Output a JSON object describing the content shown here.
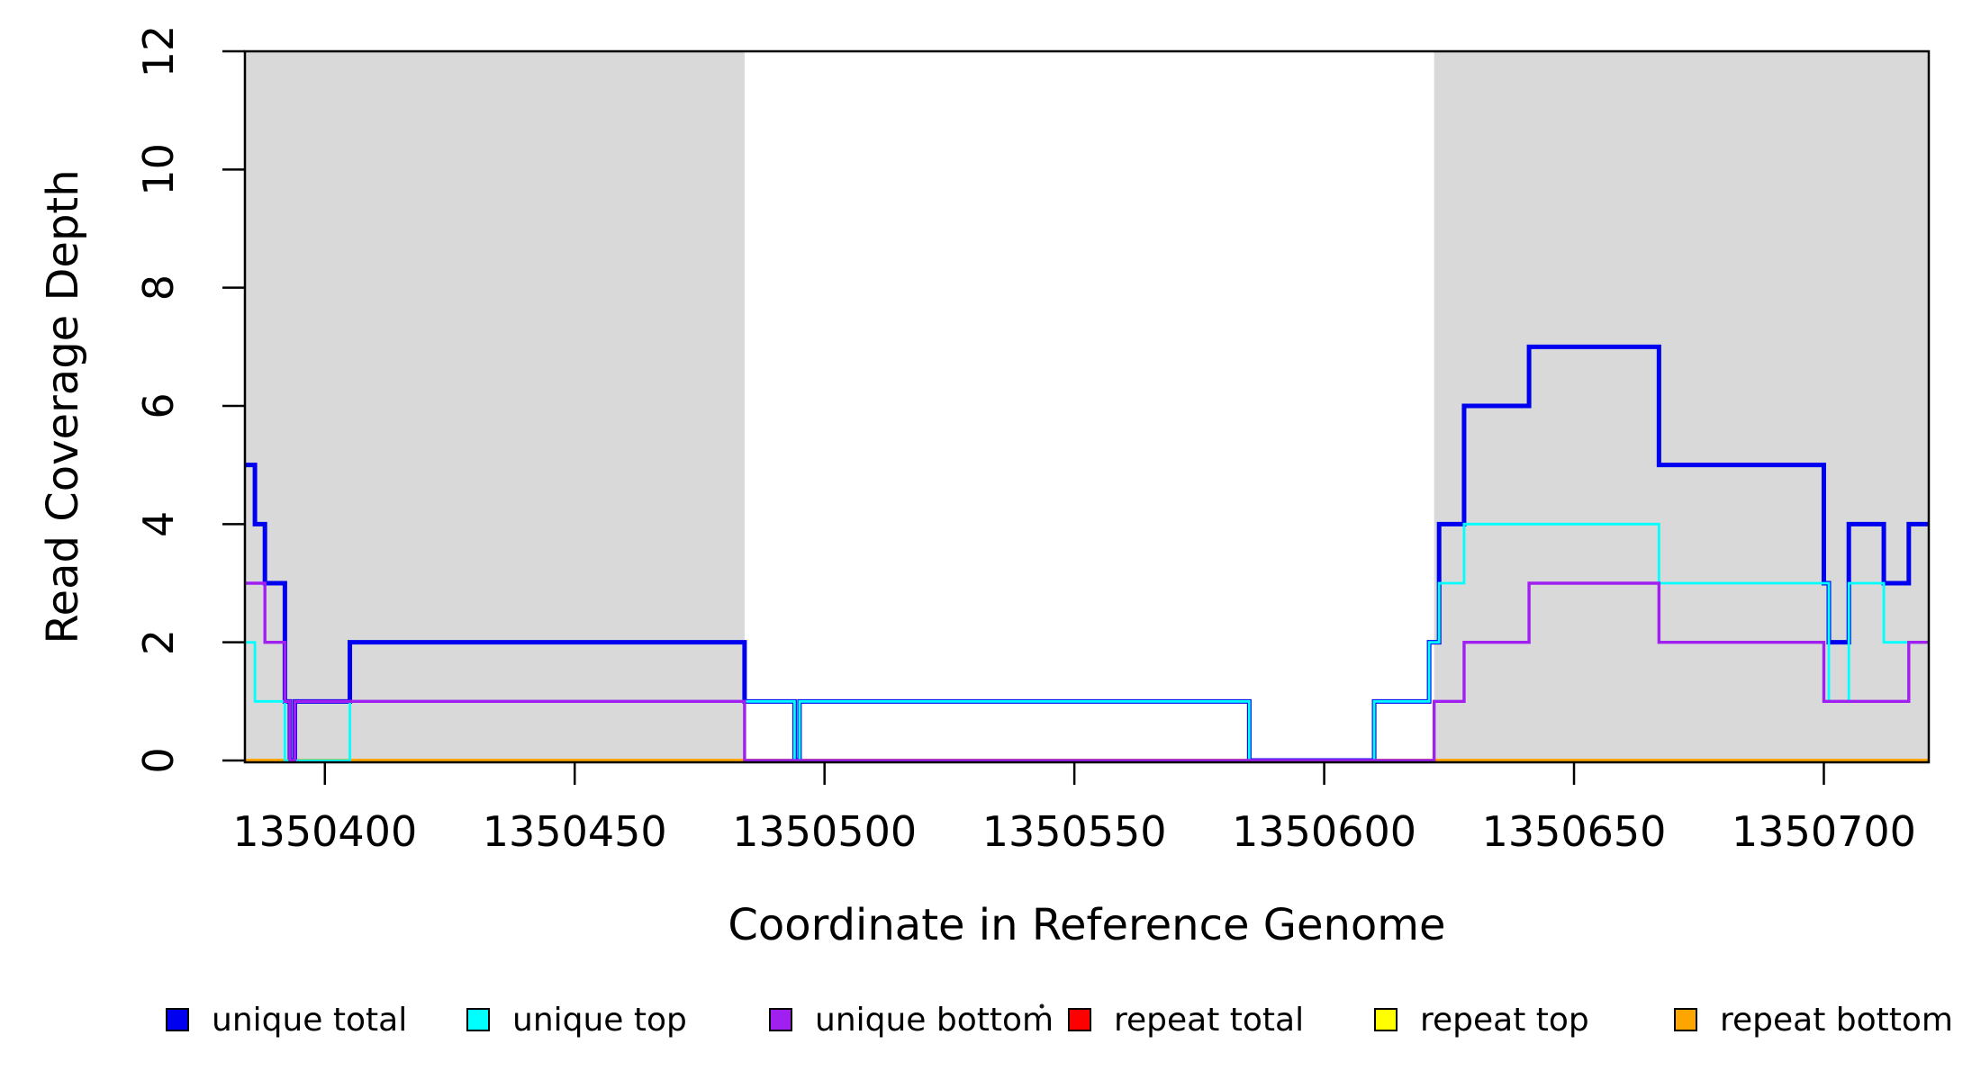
{
  "figure": {
    "background": "#FFFFFF",
    "axis_color": "#000000"
  },
  "chart_data": {
    "type": "line",
    "subtype": "step-coverage",
    "title": "",
    "xlabel": "Coordinate in Reference Genome",
    "ylabel": "Read Coverage Depth",
    "xlim": [
      1350384,
      1350721
    ],
    "ylim": [
      0,
      12
    ],
    "xticks": [
      1350400,
      1350450,
      1350500,
      1350550,
      1350600,
      1350650,
      1350700
    ],
    "yticks": [
      0,
      2,
      4,
      6,
      8,
      10,
      12
    ],
    "grid": false,
    "legend_position": "bottom",
    "shaded_regions": [
      {
        "name": "repeat-region-1",
        "start": 1350384,
        "end": 1350484,
        "color": "#D9D9D9"
      },
      {
        "name": "repeat-region-2",
        "start": 1350622,
        "end": 1350721,
        "color": "#D9D9D9"
      }
    ],
    "series": [
      {
        "name": "repeat total",
        "color": "#FF0000",
        "width": 3,
        "steps": [
          [
            1350384,
            0
          ]
        ]
      },
      {
        "name": "repeat top",
        "color": "#FFFF00",
        "width": 3,
        "steps": [
          [
            1350384,
            0
          ]
        ]
      },
      {
        "name": "repeat bottom",
        "color": "#FFA500",
        "width": 4,
        "steps": [
          [
            1350384,
            0
          ]
        ]
      },
      {
        "name": "unique total",
        "color": "#0000F0",
        "width": 5,
        "steps": [
          [
            1350384,
            5
          ],
          [
            1350386,
            4
          ],
          [
            1350388,
            3
          ],
          [
            1350392,
            1
          ],
          [
            1350393,
            0
          ],
          [
            1350394,
            1
          ],
          [
            1350405,
            2
          ],
          [
            1350484,
            1
          ],
          [
            1350494,
            0
          ],
          [
            1350495,
            1
          ],
          [
            1350585,
            0
          ],
          [
            1350610,
            1
          ],
          [
            1350621,
            2
          ],
          [
            1350623,
            4
          ],
          [
            1350628,
            6
          ],
          [
            1350641,
            7
          ],
          [
            1350667,
            5
          ],
          [
            1350700,
            3
          ],
          [
            1350701,
            2
          ],
          [
            1350705,
            4
          ],
          [
            1350712,
            3
          ],
          [
            1350717,
            4
          ]
        ]
      },
      {
        "name": "unique top",
        "color": "#00FFFF",
        "width": 2.8,
        "steps": [
          [
            1350384,
            2
          ],
          [
            1350386,
            1
          ],
          [
            1350392,
            0
          ],
          [
            1350405,
            1
          ],
          [
            1350494,
            0
          ],
          [
            1350495,
            1
          ],
          [
            1350585,
            0
          ],
          [
            1350610,
            1
          ],
          [
            1350621,
            2
          ],
          [
            1350623,
            3
          ],
          [
            1350628,
            4
          ],
          [
            1350667,
            3
          ],
          [
            1350701,
            1
          ],
          [
            1350705,
            3
          ],
          [
            1350712,
            2
          ]
        ]
      },
      {
        "name": "unique bottom",
        "color": "#A020F0",
        "width": 3.4,
        "steps": [
          [
            1350384,
            3
          ],
          [
            1350388,
            2
          ],
          [
            1350392,
            1
          ],
          [
            1350393,
            0
          ],
          [
            1350394,
            1
          ],
          [
            1350484,
            0
          ],
          [
            1350622,
            1
          ],
          [
            1350628,
            2
          ],
          [
            1350641,
            3
          ],
          [
            1350667,
            2
          ],
          [
            1350700,
            1
          ],
          [
            1350717,
            2
          ]
        ]
      }
    ],
    "legend": [
      {
        "label": "unique total",
        "color": "#0000F0"
      },
      {
        "label": "unique top",
        "color": "#00FFFF"
      },
      {
        "label": "unique bottom",
        "color": "#A020F0"
      },
      {
        "label": "repeat total",
        "color": "#FF0000"
      },
      {
        "label": "repeat top",
        "color": "#FFFF00"
      },
      {
        "label": "repeat bottom",
        "color": "#FFA500"
      }
    ]
  }
}
